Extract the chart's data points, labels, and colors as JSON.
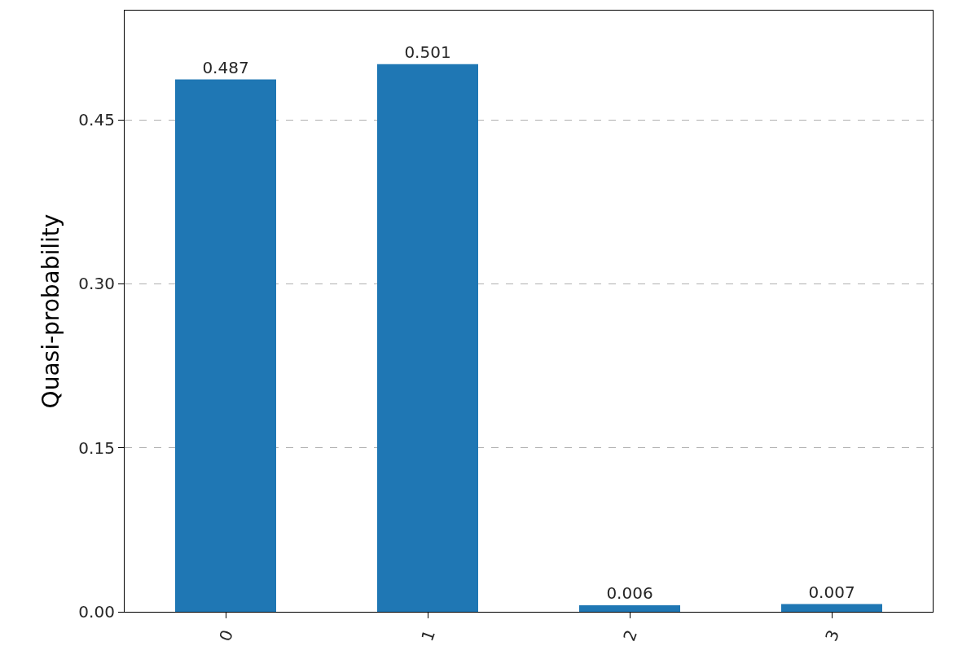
{
  "chart_data": {
    "type": "bar",
    "ylabel": "Quasi-probability",
    "categories": [
      "0",
      "1",
      "2",
      "3"
    ],
    "values": [
      0.487,
      0.501,
      0.006,
      0.007
    ],
    "color": "#1f77b4",
    "data_labels": true,
    "ylim": [
      0,
      0.55
    ],
    "yticks": [
      {
        "value": 0,
        "label": "0.00"
      },
      {
        "value": 0.15,
        "label": "0.15"
      },
      {
        "value": 0.3,
        "label": "0.30"
      },
      {
        "value": 0.45,
        "label": "0.45"
      }
    ],
    "grid": "y"
  }
}
